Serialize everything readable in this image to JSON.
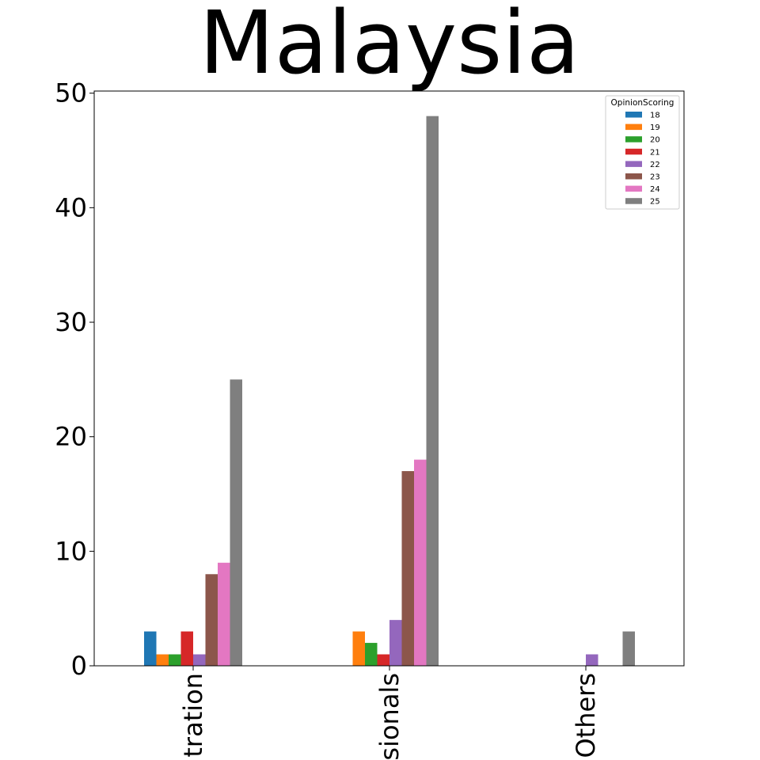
{
  "chart_data": {
    "type": "bar",
    "title": "Malaysia",
    "xlabel": "",
    "ylabel": "",
    "ylim": [
      0,
      50
    ],
    "yticks": [
      "0",
      "10",
      "20",
      "30",
      "40",
      "50"
    ],
    "categories": [
      "tration",
      "sionals",
      "Others"
    ],
    "legend": {
      "title": "OpinionScoring",
      "position": "top-right"
    },
    "grid": false,
    "series": [
      {
        "name": "18",
        "color": "#1f77b4",
        "values": [
          3,
          0,
          0
        ]
      },
      {
        "name": "19",
        "color": "#ff7f0e",
        "values": [
          1,
          3,
          0
        ]
      },
      {
        "name": "20",
        "color": "#2ca02c",
        "values": [
          1,
          2,
          0
        ]
      },
      {
        "name": "21",
        "color": "#d62728",
        "values": [
          3,
          1,
          0
        ]
      },
      {
        "name": "22",
        "color": "#9467bd",
        "values": [
          1,
          4,
          1
        ]
      },
      {
        "name": "23",
        "color": "#8c564b",
        "values": [
          8,
          17,
          0
        ]
      },
      {
        "name": "24",
        "color": "#e377c2",
        "values": [
          9,
          18,
          0
        ]
      },
      {
        "name": "25",
        "color": "#7f7f7f",
        "values": [
          25,
          48,
          3
        ]
      }
    ]
  }
}
